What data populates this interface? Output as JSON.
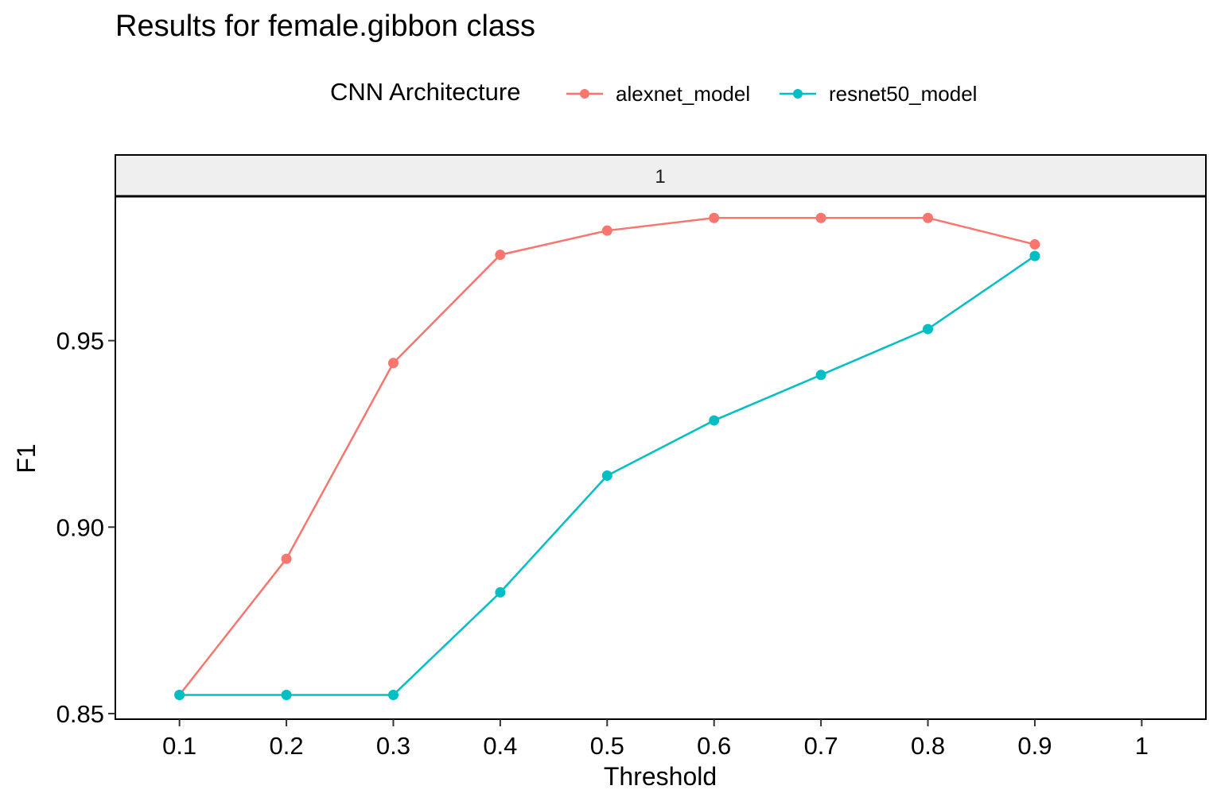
{
  "chart_data": {
    "type": "line",
    "title": "Results for female.gibbon class",
    "facet_label": "1",
    "xlabel": "Threshold",
    "ylabel": "F1",
    "x_ticks": [
      0.1,
      0.2,
      0.3,
      0.4,
      0.5,
      0.6,
      0.7,
      0.8,
      0.9,
      1.0
    ],
    "x_tick_labels": [
      "0.1",
      "0.2",
      "0.3",
      "0.4",
      "0.5",
      "0.6",
      "0.7",
      "0.8",
      "0.9",
      "1"
    ],
    "y_ticks": [
      0.85,
      0.9,
      0.95
    ],
    "y_tick_labels": [
      "0.85",
      "0.90",
      "0.95"
    ],
    "xlim": [
      0.04,
      1.06
    ],
    "ylim": [
      0.8485,
      0.9887
    ],
    "grid": false,
    "legend": {
      "title": "CNN Architecture",
      "position": "top"
    },
    "x": [
      0.1,
      0.2,
      0.3,
      0.4,
      0.5,
      0.6,
      0.7,
      0.8,
      0.9
    ],
    "series": [
      {
        "name": "alexnet_model",
        "color": "#F8766D",
        "values": [
          0.855,
          0.8915,
          0.944,
          0.973,
          0.9795,
          0.9829,
          0.9829,
          0.9829,
          0.9758
        ]
      },
      {
        "name": "resnet50_model",
        "color": "#00BFC4",
        "values": [
          0.855,
          0.855,
          0.855,
          0.8825,
          0.9138,
          0.9286,
          0.9408,
          0.9531,
          0.9727
        ]
      }
    ]
  }
}
